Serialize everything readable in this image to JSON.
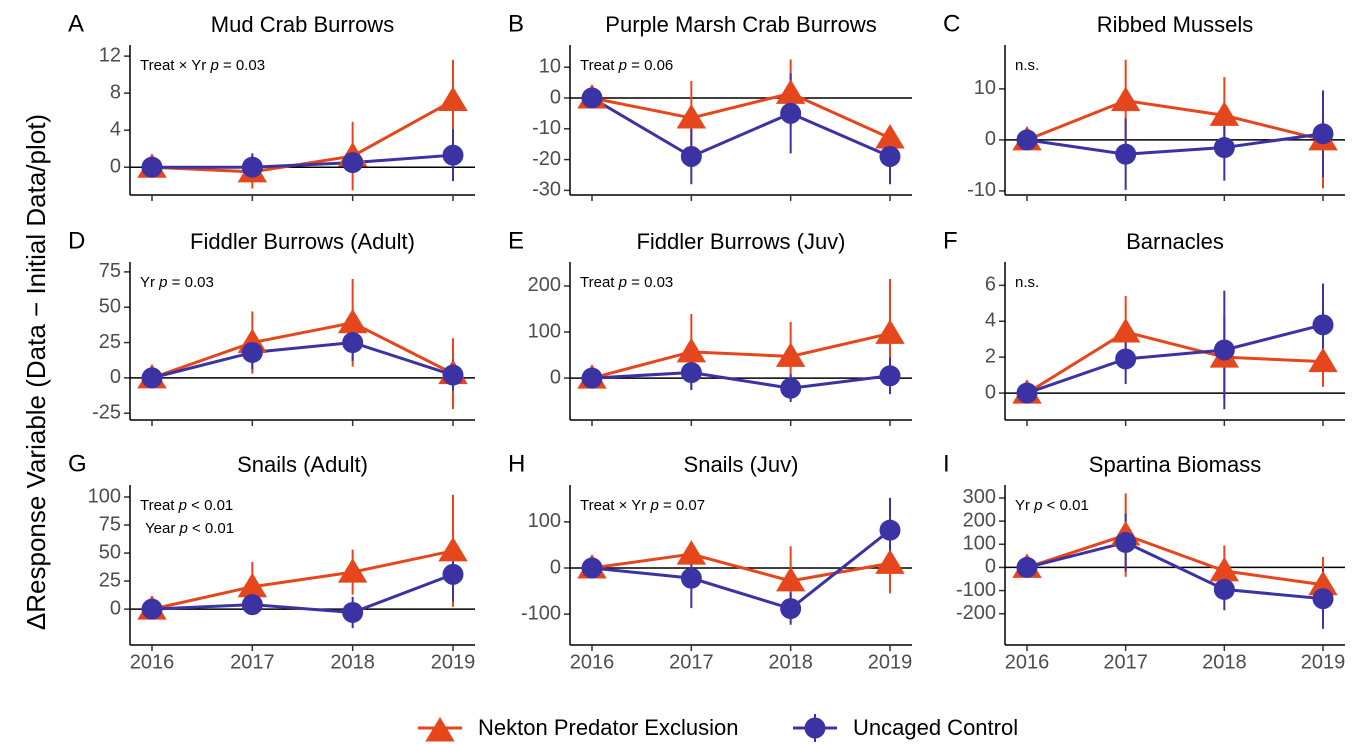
{
  "y_label": "ΔResponse Variable (Data − Initial Data/plot)",
  "reference_line": 0,
  "legend": [
    {
      "name": "Nekton Predator Exclusion",
      "color": "#e5461c",
      "marker": "triangle"
    },
    {
      "name": "Uncaged Control",
      "color": "#3b33a3",
      "marker": "circle"
    }
  ],
  "chart_data": [
    {
      "type": "line",
      "panel": "A",
      "title": "Mud Crab Burrows",
      "annotation": [
        [
          "Treat × Yr ",
          "p",
          " = 0.03"
        ]
      ],
      "categories": [
        "2016",
        "2017",
        "2018",
        "2019"
      ],
      "x_tick_labels": false,
      "ylim": [
        -3,
        13.2
      ],
      "yticks": [
        0,
        4,
        8,
        12
      ],
      "series": [
        {
          "color": "#e5461c",
          "marker": "triangle",
          "values": [
            0,
            -0.5,
            1.2,
            7.2
          ],
          "errors": [
            0,
            1.8,
            3.7,
            4.4
          ]
        },
        {
          "color": "#3b33a3",
          "marker": "circle",
          "values": [
            0,
            0,
            0.5,
            1.3
          ],
          "errors": [
            0,
            1.5,
            1.0,
            2.8
          ]
        }
      ]
    },
    {
      "type": "line",
      "panel": "B",
      "title": "Purple Marsh Crab Burrows",
      "annotation": [
        [
          "Treat ",
          "p",
          " = 0.06"
        ]
      ],
      "categories": [
        "2016",
        "2017",
        "2018",
        "2019"
      ],
      "x_tick_labels": false,
      "ylim": [
        -31.5,
        17.2
      ],
      "yticks": [
        -30,
        -20,
        -10,
        0,
        10
      ],
      "series": [
        {
          "color": "#e5461c",
          "marker": "triangle",
          "values": [
            0,
            -6.5,
            1.5,
            -13
          ],
          "errors": [
            0,
            12,
            11,
            3
          ]
        },
        {
          "color": "#3b33a3",
          "marker": "circle",
          "values": [
            0,
            -19,
            -5,
            -19
          ],
          "errors": [
            0,
            9,
            13,
            9
          ]
        }
      ]
    },
    {
      "type": "line",
      "panel": "C",
      "title": "Ribbed Mussels",
      "annotation": [
        [
          "n.s."
        ]
      ],
      "categories": [
        "2016",
        "2017",
        "2018",
        "2019"
      ],
      "x_tick_labels": false,
      "ylim": [
        -10.8,
        18.6
      ],
      "yticks": [
        -10,
        0,
        10
      ],
      "series": [
        {
          "color": "#e5461c",
          "marker": "triangle",
          "values": [
            0,
            7.7,
            4.8,
            0
          ],
          "errors": [
            0,
            8,
            7.5,
            9.5
          ]
        },
        {
          "color": "#3b33a3",
          "marker": "circle",
          "values": [
            0,
            -2.8,
            -1.5,
            1.2
          ],
          "errors": [
            0,
            7,
            6.5,
            8.5
          ]
        }
      ]
    },
    {
      "type": "line",
      "panel": "D",
      "title": "Fiddler Burrows (Adult)",
      "annotation": [
        [
          "Yr ",
          "p",
          " = 0.03"
        ]
      ],
      "categories": [
        "2016",
        "2017",
        "2018",
        "2019"
      ],
      "x_tick_labels": false,
      "ylim": [
        -29.8,
        82
      ],
      "yticks": [
        -25,
        0,
        25,
        50,
        75
      ],
      "series": [
        {
          "color": "#e5461c",
          "marker": "triangle",
          "values": [
            0,
            25,
            39,
            3
          ],
          "errors": [
            0,
            22,
            31,
            25
          ]
        },
        {
          "color": "#3b33a3",
          "marker": "circle",
          "values": [
            0,
            18,
            25,
            2
          ],
          "errors": [
            0,
            12,
            13,
            11
          ]
        }
      ]
    },
    {
      "type": "line",
      "panel": "E",
      "title": "Fiddler Burrows (Juv)",
      "annotation": [
        [
          "Treat ",
          "p",
          " = 0.03"
        ]
      ],
      "categories": [
        "2016",
        "2017",
        "2018",
        "2019"
      ],
      "x_tick_labels": false,
      "ylim": [
        -91,
        252
      ],
      "yticks": [
        0,
        100,
        200
      ],
      "series": [
        {
          "color": "#e5461c",
          "marker": "triangle",
          "values": [
            0,
            57,
            47,
            97
          ],
          "errors": [
            0,
            82,
            75,
            118
          ]
        },
        {
          "color": "#3b33a3",
          "marker": "circle",
          "values": [
            0,
            12,
            -22,
            5
          ],
          "errors": [
            0,
            38,
            30,
            40
          ]
        }
      ]
    },
    {
      "type": "line",
      "panel": "F",
      "title": "Barnacles",
      "annotation": [
        [
          "n.s."
        ]
      ],
      "categories": [
        "2016",
        "2017",
        "2018",
        "2019"
      ],
      "x_tick_labels": false,
      "ylim": [
        -1.5,
        7.3
      ],
      "yticks": [
        0,
        2,
        4,
        6
      ],
      "series": [
        {
          "color": "#e5461c",
          "marker": "triangle",
          "values": [
            0,
            3.4,
            2.0,
            1.75
          ],
          "errors": [
            0,
            2,
            2.3,
            1.4
          ]
        },
        {
          "color": "#3b33a3",
          "marker": "circle",
          "values": [
            0,
            1.9,
            2.4,
            3.8
          ],
          "errors": [
            0,
            1.4,
            3.3,
            2.3
          ]
        }
      ]
    },
    {
      "type": "line",
      "panel": "G",
      "title": "Snails (Adult)",
      "annotation": [
        [
          "Treat ",
          "p",
          " < 0.01"
        ],
        [
          "Year ",
          "p",
          " < 0.01"
        ]
      ],
      "categories": [
        "2016",
        "2017",
        "2018",
        "2019"
      ],
      "x_tick_labels": true,
      "ylim": [
        -32,
        110.7
      ],
      "yticks": [
        0,
        25,
        50,
        75,
        100
      ],
      "series": [
        {
          "color": "#e5461c",
          "marker": "triangle",
          "values": [
            0,
            20,
            33,
            52
          ],
          "errors": [
            0,
            22,
            20,
            50
          ]
        },
        {
          "color": "#3b33a3",
          "marker": "circle",
          "values": [
            0,
            4,
            -3,
            31
          ],
          "errors": [
            0,
            8,
            14,
            24
          ]
        }
      ]
    },
    {
      "type": "line",
      "panel": "H",
      "title": "Snails (Juv)",
      "annotation": [
        [
          "Treat × Yr ",
          "p",
          " = 0.07"
        ]
      ],
      "categories": [
        "2016",
        "2017",
        "2018",
        "2019"
      ],
      "x_tick_labels": true,
      "ylim": [
        -167,
        180
      ],
      "yticks": [
        -100,
        0,
        100
      ],
      "series": [
        {
          "color": "#e5461c",
          "marker": "triangle",
          "values": [
            0,
            30,
            -28,
            10
          ],
          "errors": [
            0,
            25,
            75,
            65
          ]
        },
        {
          "color": "#3b33a3",
          "marker": "circle",
          "values": [
            0,
            -22,
            -88,
            82
          ],
          "errors": [
            0,
            65,
            35,
            70
          ]
        }
      ]
    },
    {
      "type": "line",
      "panel": "I",
      "title": "Spartina Biomass",
      "annotation": [
        [
          "Yr ",
          "p",
          " < 0.01"
        ]
      ],
      "categories": [
        "2016",
        "2017",
        "2018",
        "2019"
      ],
      "x_tick_labels": true,
      "ylim": [
        -335,
        356
      ],
      "yticks": [
        -200,
        -100,
        0,
        100,
        200,
        300
      ],
      "series": [
        {
          "color": "#e5461c",
          "marker": "triangle",
          "values": [
            0,
            140,
            -15,
            -75
          ],
          "errors": [
            0,
            180,
            110,
            120
          ]
        },
        {
          "color": "#3b33a3",
          "marker": "circle",
          "values": [
            0,
            108,
            -95,
            -135
          ],
          "errors": [
            0,
            125,
            90,
            130
          ]
        }
      ]
    }
  ]
}
